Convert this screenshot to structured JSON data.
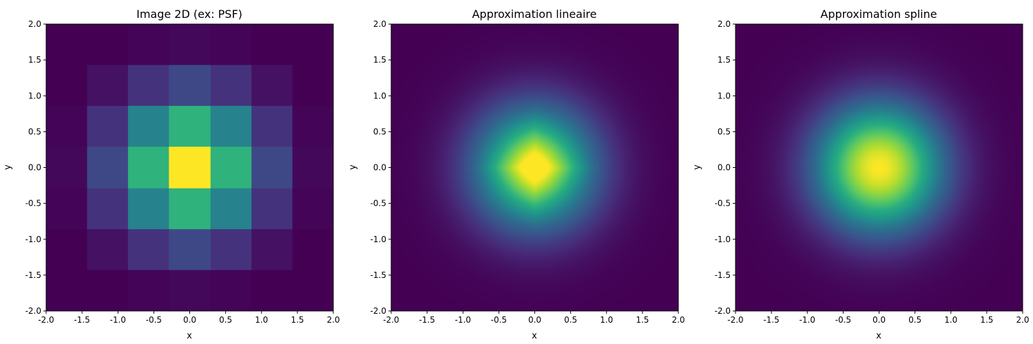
{
  "chart_data": [
    {
      "type": "heatmap",
      "render": "pixelated",
      "title": "Image 2D (ex: PSF)",
      "xlabel": "x",
      "ylabel": "y",
      "xlim": [
        -2.0,
        2.0
      ],
      "ylim": [
        -2.0,
        2.0
      ],
      "xticks": [
        "-2.0",
        "-1.5",
        "-1.0",
        "-0.5",
        "0.0",
        "0.5",
        "1.0",
        "1.5",
        "2.0"
      ],
      "yticks": [
        "-2.0",
        "-1.5",
        "-1.0",
        "-0.5",
        "0.0",
        "0.5",
        "1.0",
        "1.5",
        "2.0"
      ],
      "colormap": "viridis",
      "grid_x_centers": [
        -2.0,
        -1.43,
        -0.86,
        -0.29,
        0.29,
        0.86,
        1.43,
        2.0
      ],
      "grid_y_centers": [
        -2.0,
        -1.43,
        -0.86,
        -0.29,
        0.29,
        0.86,
        1.43,
        2.0
      ],
      "values": [
        [
          0.0,
          0.0,
          0.01,
          0.02,
          0.01,
          0.0,
          0.0
        ],
        [
          0.0,
          0.05,
          0.15,
          0.22,
          0.15,
          0.05,
          0.0
        ],
        [
          0.01,
          0.15,
          0.45,
          0.65,
          0.45,
          0.15,
          0.01
        ],
        [
          0.02,
          0.22,
          0.65,
          1.0,
          0.65,
          0.22,
          0.02
        ],
        [
          0.01,
          0.15,
          0.45,
          0.65,
          0.45,
          0.15,
          0.01
        ],
        [
          0.0,
          0.05,
          0.15,
          0.22,
          0.15,
          0.05,
          0.0
        ],
        [
          0.0,
          0.0,
          0.01,
          0.02,
          0.01,
          0.0,
          0.0
        ]
      ]
    },
    {
      "type": "heatmap",
      "render": "linear",
      "title": "Approximation lineaire",
      "xlabel": "x",
      "ylabel": "y",
      "xlim": [
        -2.0,
        2.0
      ],
      "ylim": [
        -2.0,
        2.0
      ],
      "xticks": [
        "-2.0",
        "-1.5",
        "-1.0",
        "-0.5",
        "0.0",
        "0.5",
        "1.0",
        "1.5",
        "2.0"
      ],
      "yticks": [
        "-2.0",
        "-1.5",
        "-1.0",
        "-0.5",
        "0.0",
        "0.5",
        "1.0",
        "1.5",
        "2.0"
      ],
      "colormap": "viridis",
      "peak": {
        "x": 0.0,
        "y": 0.0,
        "value": 1.0
      }
    },
    {
      "type": "heatmap",
      "render": "spline",
      "title": "Approximation spline",
      "xlabel": "x",
      "ylabel": "y",
      "xlim": [
        -2.0,
        2.0
      ],
      "ylim": [
        -2.0,
        2.0
      ],
      "xticks": [
        "-2.0",
        "-1.5",
        "-1.0",
        "-0.5",
        "0.0",
        "0.5",
        "1.0",
        "1.5",
        "2.0"
      ],
      "yticks": [
        "-2.0",
        "-1.5",
        "-1.0",
        "-0.5",
        "0.0",
        "0.5",
        "1.0",
        "1.5",
        "2.0"
      ],
      "colormap": "viridis",
      "peak": {
        "x": 0.0,
        "y": 0.0,
        "value": 1.0
      }
    }
  ]
}
